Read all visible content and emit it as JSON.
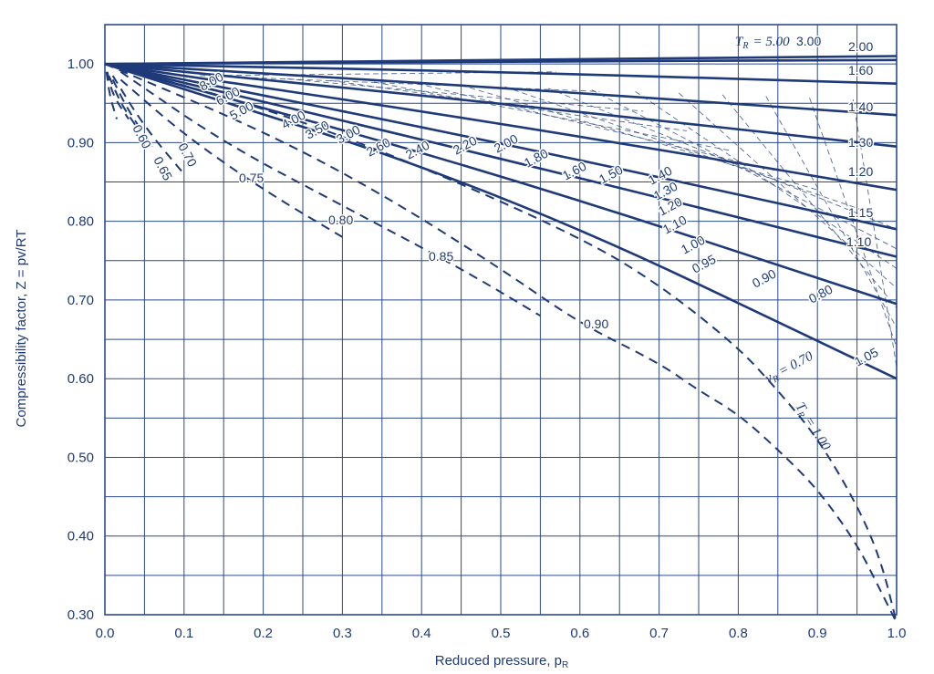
{
  "chart_data": {
    "type": "line",
    "xlabel": "Reduced pressure, p",
    "xlabel_sub": "R",
    "ylabel": "Compressibility factor, Z = pv/RT",
    "xlim": [
      0.0,
      1.0
    ],
    "ylim": [
      0.3,
      1.05
    ],
    "grid": true,
    "x_ticks": [
      "0.0",
      "0.1",
      "0.2",
      "0.3",
      "0.4",
      "0.5",
      "0.6",
      "0.7",
      "0.8",
      "0.9",
      "1.0"
    ],
    "y_ticks": [
      "1.00",
      "0.90",
      "0.80",
      "0.70",
      "0.60",
      "0.50",
      "0.40",
      "0.30"
    ],
    "series": [
      {
        "name": "5.00",
        "style": "solid",
        "x": [
          0,
          0.5,
          1.0
        ],
        "y": [
          1.0,
          1.005,
          1.01
        ]
      },
      {
        "name": "3.00",
        "style": "solid",
        "x": [
          0,
          0.5,
          1.0
        ],
        "y": [
          1.0,
          1.003,
          1.005
        ]
      },
      {
        "name": "2.00",
        "style": "solid",
        "x": [
          0,
          0.5,
          1.0
        ],
        "y": [
          1.0,
          0.99,
          0.975
        ]
      },
      {
        "name": "1.60",
        "style": "solid",
        "x": [
          0,
          0.5,
          1.0
        ],
        "y": [
          1.0,
          0.97,
          0.935
        ]
      },
      {
        "name": "1.40",
        "style": "solid",
        "x": [
          0,
          0.5,
          1.0
        ],
        "y": [
          1.0,
          0.95,
          0.895
        ]
      },
      {
        "name": "1.30",
        "style": "solid",
        "x": [
          0,
          0.5,
          1.0
        ],
        "y": [
          1.0,
          0.925,
          0.84
        ]
      },
      {
        "name": "1.20",
        "style": "solid",
        "x": [
          0,
          0.5,
          1.0
        ],
        "y": [
          1.0,
          0.9,
          0.79
        ]
      },
      {
        "name": "1.15",
        "style": "solid",
        "x": [
          0,
          0.5,
          1.0
        ],
        "y": [
          1.0,
          0.88,
          0.755
        ]
      },
      {
        "name": "1.10",
        "style": "solid",
        "x": [
          0,
          0.5,
          1.0
        ],
        "y": [
          1.0,
          0.86,
          0.695
        ]
      },
      {
        "name": "1.05",
        "style": "solid",
        "x": [
          0,
          0.5,
          1.0
        ],
        "y": [
          1.0,
          0.84,
          0.6
        ]
      },
      {
        "name": "1.00",
        "style": "dashed",
        "x": [
          0,
          0.2,
          0.4,
          0.6,
          0.7,
          0.8,
          0.85,
          0.9,
          0.95,
          0.98,
          1.0
        ],
        "y": [
          1.0,
          0.945,
          0.87,
          0.78,
          0.72,
          0.64,
          0.585,
          0.525,
          0.44,
          0.37,
          0.29
        ]
      },
      {
        "name": "0.95",
        "style": "dashed",
        "x": [
          0,
          0.2,
          0.35,
          0.5,
          0.6,
          0.7,
          0.75,
          0.8,
          0.85,
          0.9,
          0.95,
          0.98,
          1.0
        ],
        "y": [
          1.0,
          0.915,
          0.835,
          0.74,
          0.67,
          0.62,
          0.585,
          0.555,
          0.51,
          0.46,
          0.39,
          0.33,
          0.29
        ]
      },
      {
        "name": "0.90",
        "style": "dashed",
        "x": [
          0.02,
          0.15,
          0.3,
          0.45,
          0.55
        ],
        "y": [
          0.99,
          0.9,
          0.82,
          0.74,
          0.68
        ]
      },
      {
        "name": "0.85",
        "style": "dashed",
        "x": [
          0.02,
          0.1,
          0.2,
          0.3
        ],
        "y": [
          0.98,
          0.91,
          0.84,
          0.78
        ]
      },
      {
        "name": "0.80",
        "style": "dashed",
        "x": [
          0.01,
          0.05,
          0.1
        ],
        "y": [
          0.985,
          0.92,
          0.86
        ]
      },
      {
        "name": "0.75",
        "style": "dashed",
        "x": [
          0.01,
          0.03,
          0.06
        ],
        "y": [
          0.98,
          0.94,
          0.895
        ]
      },
      {
        "name": "0.70",
        "style": "dashed",
        "x": [
          0.005,
          0.02,
          0.04
        ],
        "y": [
          0.985,
          0.95,
          0.92
        ]
      },
      {
        "name": "0.65",
        "style": "dashed",
        "x": [
          0.003,
          0.01,
          0.03
        ],
        "y": [
          0.99,
          0.96,
          0.93
        ]
      },
      {
        "name": "0.60",
        "style": "dashed",
        "x": [
          0.002,
          0.006,
          0.015
        ],
        "y": [
          0.99,
          0.96,
          0.93
        ]
      }
    ],
    "tr_labels": [
      "T",
      "R",
      "= 5.00",
      "3.00",
      "2.00",
      "1.60",
      "1.40",
      "1.30",
      "1.20",
      "1.15",
      "1.10",
      "0.90",
      "0.80",
      "1.05",
      "8.00",
      "6.00",
      "5.00",
      "4.00",
      "3.50",
      "3.00",
      "2.60",
      "2.40",
      "2.20",
      "2.00",
      "1.80",
      "1.60",
      "1.50",
      "1.40",
      "1.30",
      "1.20",
      "1.10",
      "1.00",
      "0.95",
      "0.90",
      "0.85",
      "0.80",
      "0.75",
      "0.70",
      "0.65",
      "0.60"
    ],
    "vr_label": "v",
    "vr_label_sub": "R",
    "vr_value": "= 0.70",
    "tr_curve_label": "T",
    "tr_curve_sub": "R",
    "tr_curve_value": "= 1.00"
  },
  "colors": {
    "ink": "#1e3a78",
    "grid": "#2c4a8a",
    "background": "#ffffff"
  }
}
